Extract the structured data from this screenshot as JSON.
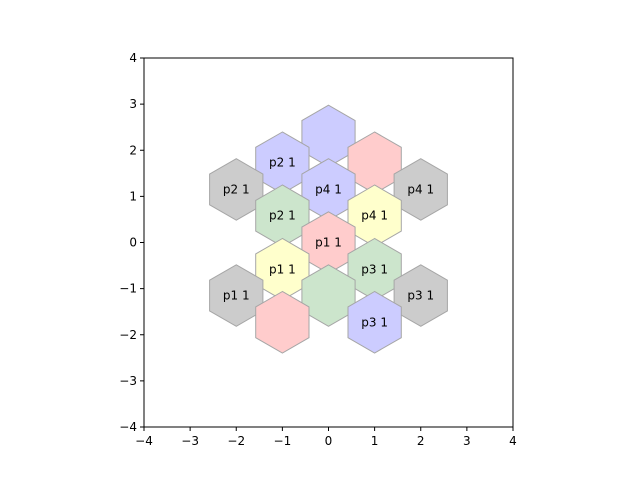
{
  "chart_data": {
    "type": "scatter",
    "title": "",
    "xlabel": "",
    "ylabel": "",
    "xlim": [
      -4,
      4
    ],
    "ylim": [
      -4,
      4
    ],
    "xticks": [
      -4,
      -3,
      -2,
      -1,
      0,
      1,
      2,
      3,
      4
    ],
    "yticks": [
      -4,
      -3,
      -2,
      -1,
      0,
      1,
      2,
      3,
      4
    ],
    "xtick_labels": [
      "−4",
      "−3",
      "−2",
      "−1",
      "0",
      "1",
      "2",
      "3",
      "4"
    ],
    "ytick_labels": [
      "−4",
      "−3",
      "−2",
      "−1",
      "0",
      "1",
      "2",
      "3",
      "4"
    ],
    "grid": false,
    "aspect": "equal",
    "hexagons": [
      {
        "x": 0.0,
        "y": 2.31,
        "color": "#ccccff",
        "label": ""
      },
      {
        "x": 1.0,
        "y": 1.73,
        "color": "#ffcccc",
        "label": ""
      },
      {
        "x": -1.0,
        "y": 1.73,
        "color": "#ccccff",
        "label": "p2 1"
      },
      {
        "x": -2.0,
        "y": 1.15,
        "color": "#cccccc",
        "label": "p2 1"
      },
      {
        "x": 0.0,
        "y": 1.15,
        "color": "#ccccff",
        "label": "p4 1"
      },
      {
        "x": 2.0,
        "y": 1.15,
        "color": "#cccccc",
        "label": "p4 1"
      },
      {
        "x": -1.0,
        "y": 0.58,
        "color": "#cce5cc",
        "label": "p2 1"
      },
      {
        "x": 1.0,
        "y": 0.58,
        "color": "#ffffcc",
        "label": "p4 1"
      },
      {
        "x": 0.0,
        "y": 0.0,
        "color": "#ffcccc",
        "label": "p1 1"
      },
      {
        "x": -1.0,
        "y": -0.58,
        "color": "#ffffcc",
        "label": "p1 1"
      },
      {
        "x": 1.0,
        "y": -0.58,
        "color": "#cce5cc",
        "label": "p3 1"
      },
      {
        "x": -2.0,
        "y": -1.15,
        "color": "#cccccc",
        "label": "p1 1"
      },
      {
        "x": 0.0,
        "y": -1.15,
        "color": "#cce5cc",
        "label": ""
      },
      {
        "x": 2.0,
        "y": -1.15,
        "color": "#cccccc",
        "label": "p3 1"
      },
      {
        "x": -1.0,
        "y": -1.73,
        "color": "#ffcccc",
        "label": ""
      },
      {
        "x": 1.0,
        "y": -1.73,
        "color": "#ccccff",
        "label": "p3 1"
      }
    ]
  }
}
